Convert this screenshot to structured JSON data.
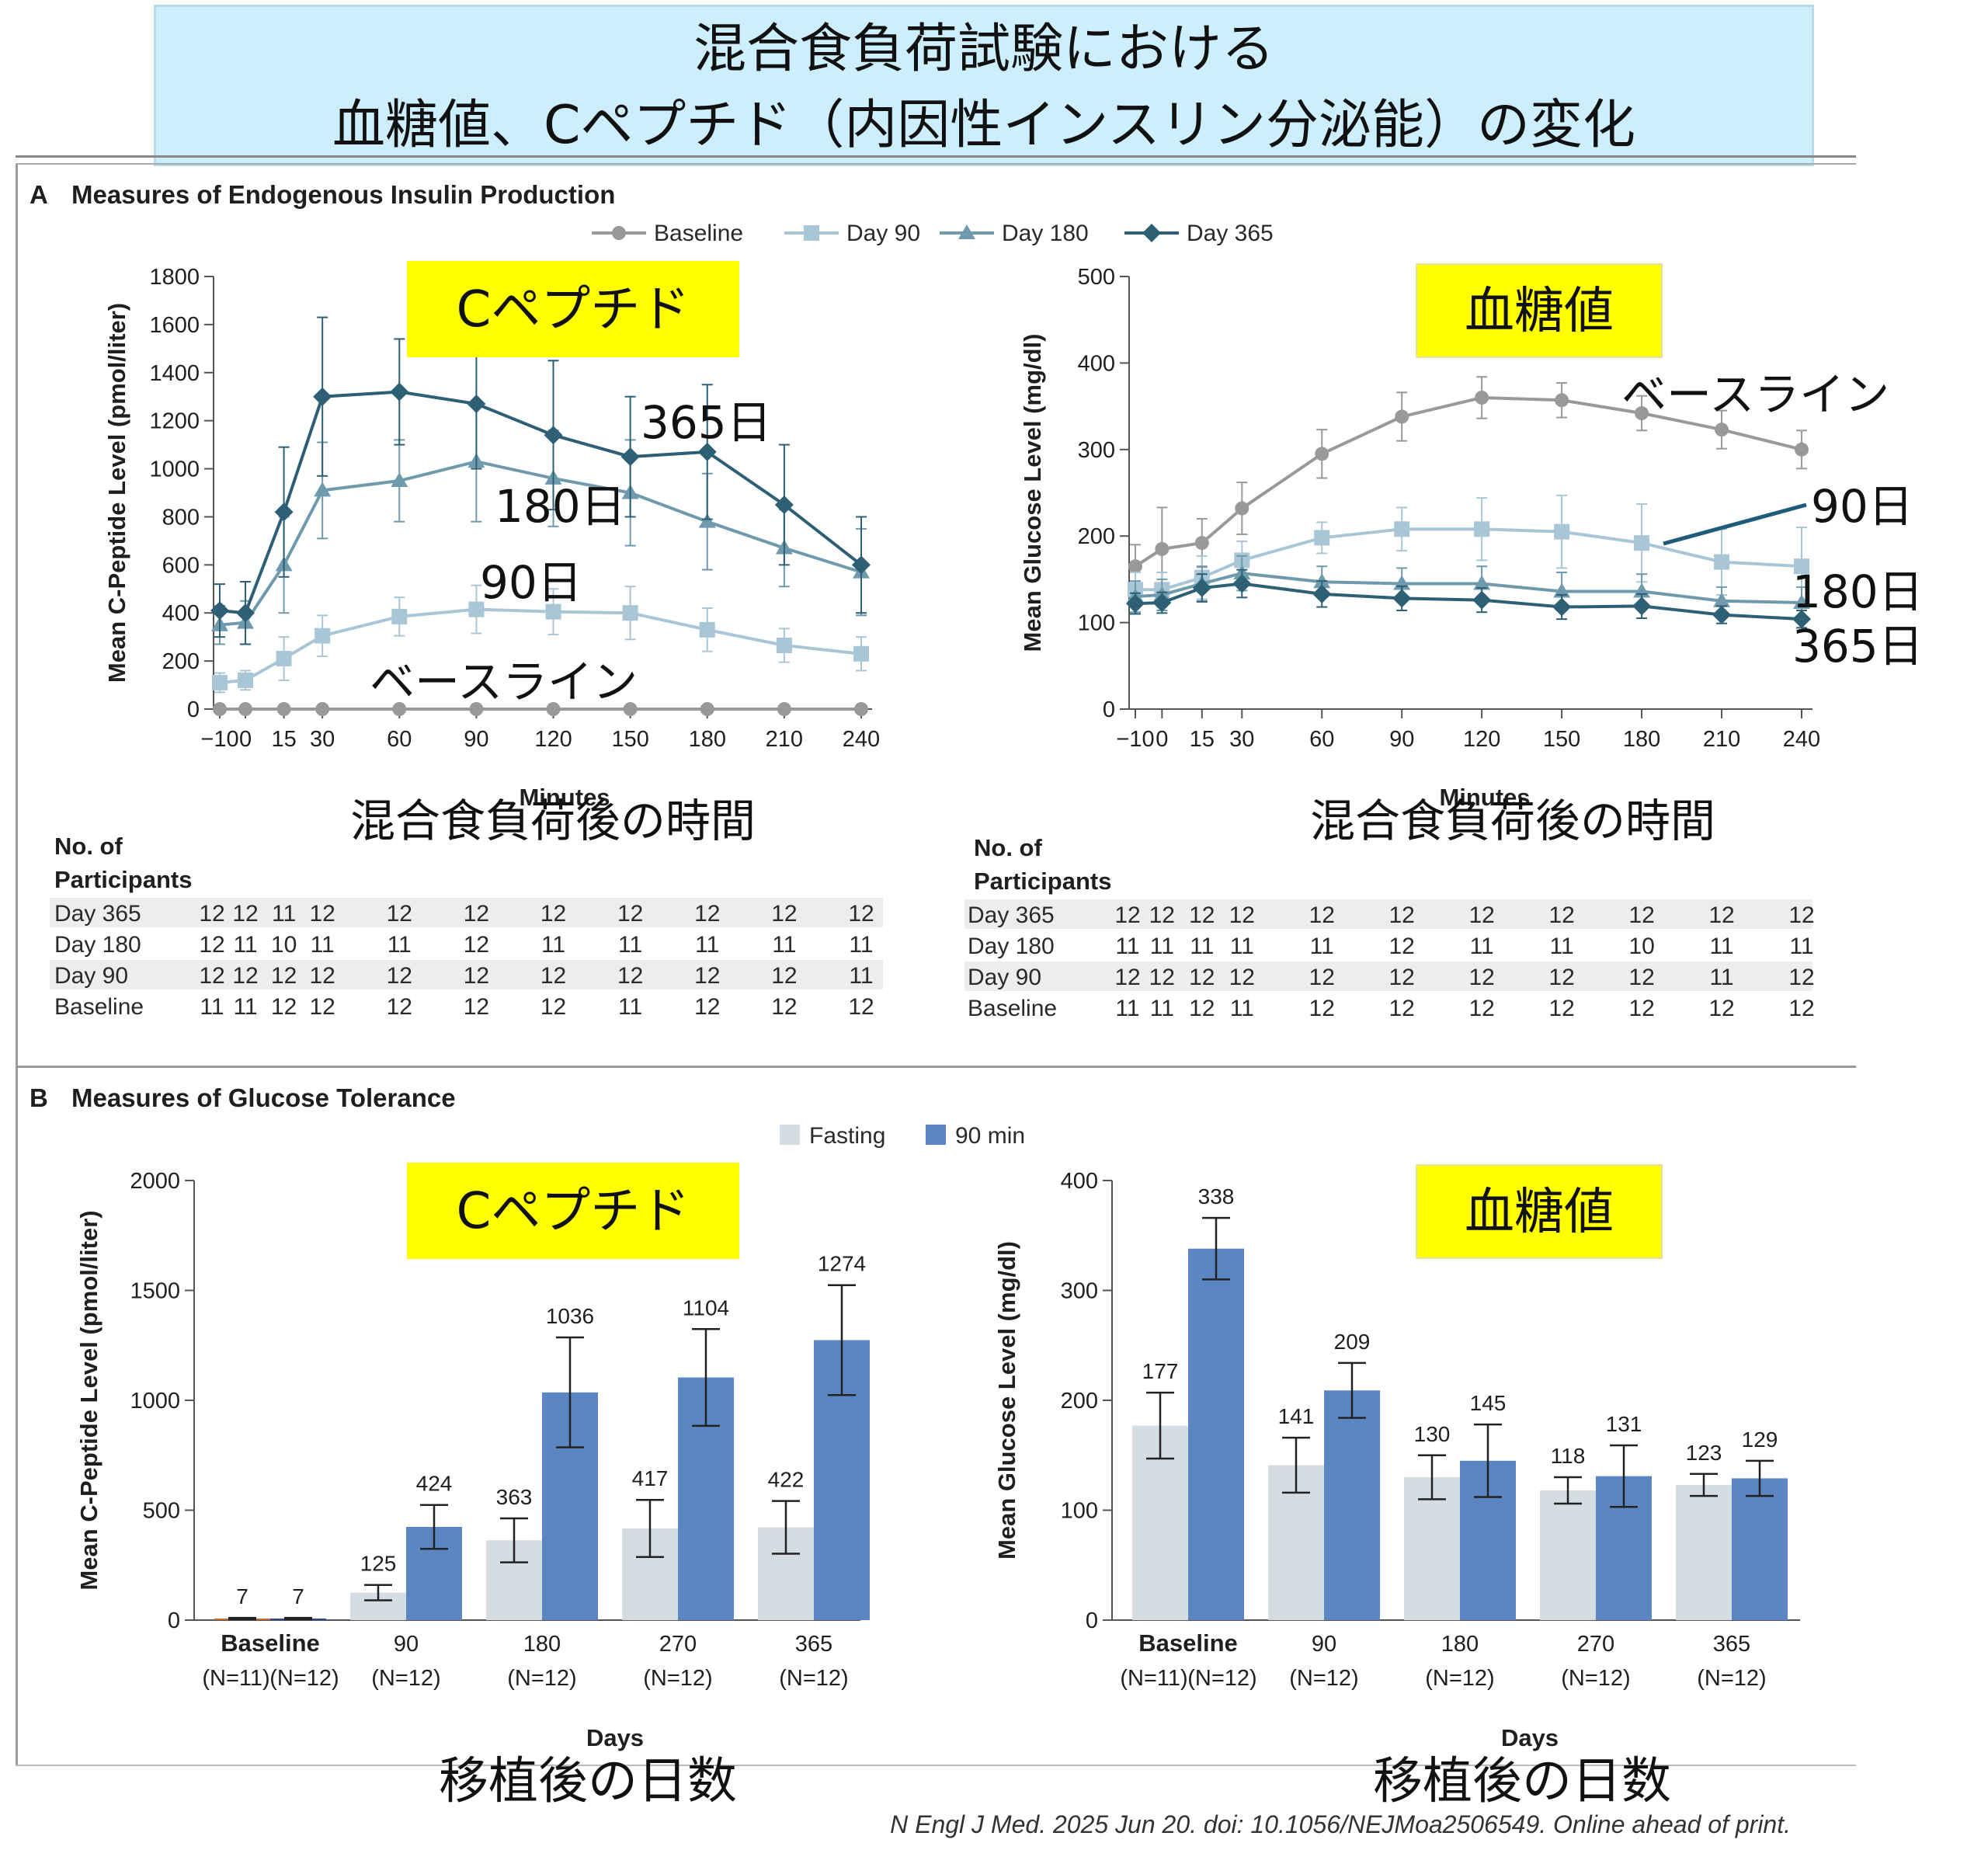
{
  "banner": {
    "line1": "混合食負荷試験における",
    "line2": "血糖値、Cペプチド（内因性インスリン分泌能）の変化"
  },
  "panel_a": {
    "title_letter": "A",
    "title": "Measures of Endogenous Insulin Production",
    "legend": [
      "Baseline",
      "Day 90",
      "Day 180",
      "Day 365"
    ],
    "xlabel": "Minutes",
    "xlabel_jp": "混合食負荷後の時間",
    "table_header_1": "No. of",
    "table_header_2": "Participants"
  },
  "panel_b": {
    "title_letter": "B",
    "title": "Measures of Glucose Tolerance",
    "legend": [
      "Fasting",
      "90 min"
    ],
    "xlabel": "Days",
    "xlabel_jp": "移植後の日数"
  },
  "callouts": {
    "cpeptide": "Cペプチド",
    "glucose": "血糖値",
    "baseline": "ベースライン",
    "d90": "90日",
    "d180": "180日",
    "d365": "365日"
  },
  "citation": "N Engl J Med. 2025 Jun 20. doi: 10.1056/NEJMoa2506549. Online ahead of print.",
  "colors": {
    "baseline": "#999999",
    "day90": "#a9c6d6",
    "day180": "#6f9aad",
    "day365": "#2d5f75",
    "fasting": "#d3dde2",
    "min90": "#5b86c2",
    "callout_bg": "#ffff00",
    "banner_bg": "#cdeefc"
  },
  "chart_data": [
    {
      "type": "line",
      "ylabel": "Mean C-Peptide Level (pmol/liter)",
      "xlabel": "Minutes",
      "x": [
        -10,
        0,
        15,
        30,
        60,
        90,
        120,
        150,
        180,
        210,
        240
      ],
      "ylim": [
        0,
        1800
      ],
      "yticks": [
        0,
        200,
        400,
        600,
        800,
        1000,
        1200,
        1400,
        1600,
        1800
      ],
      "series": [
        {
          "name": "Baseline",
          "marker": "circle",
          "values": [
            0,
            0,
            0,
            0,
            0,
            0,
            0,
            0,
            0,
            0,
            0
          ],
          "err": [
            0,
            0,
            0,
            0,
            0,
            0,
            0,
            0,
            0,
            0,
            0
          ]
        },
        {
          "name": "Day 90",
          "marker": "square",
          "values": [
            110,
            120,
            210,
            305,
            385,
            415,
            405,
            400,
            330,
            265,
            230
          ],
          "err": [
            40,
            40,
            90,
            85,
            80,
            100,
            95,
            110,
            90,
            70,
            70
          ]
        },
        {
          "name": "Day 180",
          "marker": "triangle",
          "values": [
            350,
            360,
            600,
            910,
            950,
            1030,
            960,
            900,
            780,
            670,
            570
          ],
          "err": [
            80,
            90,
            200,
            200,
            170,
            250,
            200,
            220,
            200,
            160,
            180
          ]
        },
        {
          "name": "Day 365",
          "marker": "diamond",
          "values": [
            410,
            400,
            820,
            1300,
            1320,
            1270,
            1140,
            1050,
            1070,
            850,
            600
          ],
          "err": [
            110,
            130,
            270,
            330,
            220,
            270,
            310,
            250,
            280,
            250,
            200
          ]
        }
      ],
      "participants": [
        {
          "label": "Day 365",
          "counts": [
            12,
            12,
            11,
            12,
            12,
            12,
            12,
            12,
            12,
            12,
            12
          ]
        },
        {
          "label": "Day 180",
          "counts": [
            12,
            11,
            10,
            11,
            11,
            12,
            11,
            11,
            11,
            11,
            11
          ]
        },
        {
          "label": "Day 90",
          "counts": [
            12,
            12,
            12,
            12,
            12,
            12,
            12,
            12,
            12,
            12,
            11
          ]
        },
        {
          "label": "Baseline",
          "counts": [
            11,
            11,
            12,
            12,
            12,
            12,
            12,
            11,
            12,
            12,
            12
          ]
        }
      ]
    },
    {
      "type": "line",
      "ylabel": "Mean Glucose Level (mg/dl)",
      "xlabel": "Minutes",
      "x": [
        -10,
        0,
        15,
        30,
        60,
        90,
        120,
        150,
        180,
        210,
        240
      ],
      "ylim": [
        0,
        500
      ],
      "yticks": [
        0,
        100,
        200,
        300,
        400,
        500
      ],
      "series": [
        {
          "name": "Baseline",
          "marker": "circle",
          "values": [
            165,
            185,
            192,
            232,
            295,
            338,
            360,
            357,
            342,
            323,
            300
          ],
          "err": [
            25,
            48,
            28,
            30,
            28,
            28,
            24,
            20,
            20,
            22,
            22
          ]
        },
        {
          "name": "Day 90",
          "marker": "square",
          "values": [
            138,
            138,
            152,
            172,
            198,
            208,
            208,
            205,
            192,
            170,
            165
          ],
          "err": [
            20,
            20,
            25,
            22,
            18,
            25,
            36,
            42,
            45,
            38,
            45
          ]
        },
        {
          "name": "Day 180",
          "marker": "triangle",
          "values": [
            130,
            132,
            145,
            157,
            147,
            145,
            145,
            136,
            136,
            125,
            123
          ],
          "err": [
            18,
            18,
            20,
            20,
            18,
            18,
            20,
            22,
            20,
            16,
            18
          ]
        },
        {
          "name": "Day 365",
          "marker": "diamond",
          "values": [
            122,
            123,
            140,
            145,
            133,
            128,
            126,
            118,
            119,
            109,
            104
          ],
          "err": [
            12,
            12,
            16,
            16,
            15,
            14,
            14,
            14,
            14,
            10,
            10
          ]
        }
      ],
      "participants": [
        {
          "label": "Day 365",
          "counts": [
            12,
            12,
            12,
            12,
            12,
            12,
            12,
            12,
            12,
            12,
            12
          ]
        },
        {
          "label": "Day 180",
          "counts": [
            11,
            11,
            11,
            11,
            11,
            12,
            11,
            11,
            10,
            11,
            11
          ]
        },
        {
          "label": "Day 90",
          "counts": [
            12,
            12,
            12,
            12,
            12,
            12,
            12,
            12,
            12,
            11,
            12
          ]
        },
        {
          "label": "Baseline",
          "counts": [
            11,
            11,
            12,
            11,
            12,
            12,
            12,
            12,
            12,
            12,
            12
          ]
        }
      ]
    },
    {
      "type": "bar",
      "ylabel": "Mean C-Peptide Level (pmol/liter)",
      "xlabel": "Days",
      "categories": [
        "Baseline",
        "90",
        "180",
        "270",
        "365"
      ],
      "ns": [
        [
          "(N=11)",
          "(N=12)"
        ],
        [
          "(N=12)"
        ],
        [
          "(N=12)"
        ],
        [
          "(N=12)"
        ],
        [
          "(N=12)"
        ]
      ],
      "ylim": [
        0,
        2000
      ],
      "yticks": [
        0,
        500,
        1000,
        1500,
        2000
      ],
      "series": [
        {
          "name": "Fasting",
          "values": [
            7,
            125,
            363,
            417,
            422
          ],
          "err": [
            3,
            35,
            100,
            130,
            120
          ]
        },
        {
          "name": "90 min",
          "values": [
            7,
            424,
            1036,
            1104,
            1274
          ],
          "err": [
            3,
            100,
            250,
            220,
            250
          ]
        }
      ]
    },
    {
      "type": "bar",
      "ylabel": "Mean Glucose Level (mg/dl)",
      "xlabel": "Days",
      "categories": [
        "Baseline",
        "90",
        "180",
        "270",
        "365"
      ],
      "ns": [
        [
          "(N=11)",
          "(N=12)"
        ],
        [
          "(N=12)"
        ],
        [
          "(N=12)"
        ],
        [
          "(N=12)"
        ],
        [
          "(N=12)"
        ]
      ],
      "ylim": [
        0,
        400
      ],
      "yticks": [
        0,
        100,
        200,
        300,
        400
      ],
      "series": [
        {
          "name": "Fasting",
          "values": [
            177,
            141,
            130,
            118,
            123
          ],
          "err": [
            30,
            25,
            20,
            12,
            10
          ]
        },
        {
          "name": "90 min",
          "values": [
            338,
            209,
            145,
            131,
            129
          ],
          "err": [
            28,
            25,
            33,
            28,
            16
          ]
        }
      ]
    }
  ]
}
